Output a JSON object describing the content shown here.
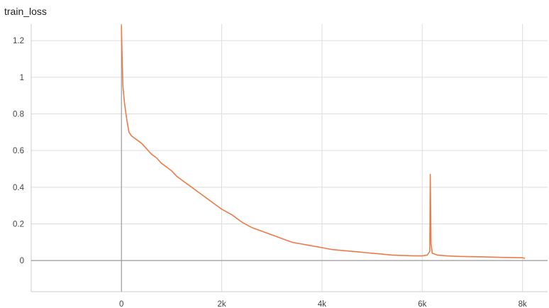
{
  "chart_data": {
    "type": "line",
    "title": "train_loss",
    "xlabel": "",
    "ylabel": "",
    "xlim": [
      -1800,
      8500
    ],
    "ylim": [
      -0.17,
      1.29
    ],
    "x_ticks": [
      0,
      2000,
      4000,
      6000,
      8000
    ],
    "x_tick_labels": [
      "0",
      "2k",
      "4k",
      "6k",
      "8k"
    ],
    "y_ticks": [
      0,
      0.2,
      0.4,
      0.6,
      0.8,
      1,
      1.2
    ],
    "y_tick_labels": [
      "0",
      "0.2",
      "0.4",
      "0.6",
      "0.8",
      "1",
      "1.2"
    ],
    "grid": true,
    "legend": "none",
    "series": [
      {
        "color": "#ed7b4a",
        "x": [
          0,
          10,
          30,
          60,
          100,
          150,
          200,
          300,
          400,
          500,
          600,
          700,
          800,
          900,
          1000,
          1100,
          1200,
          1300,
          1400,
          1500,
          1600,
          1700,
          1800,
          1900,
          2000,
          2100,
          2200,
          2300,
          2400,
          2500,
          2600,
          2700,
          2800,
          2900,
          3000,
          3100,
          3200,
          3300,
          3400,
          3500,
          3600,
          3700,
          3800,
          3900,
          4000,
          4200,
          4400,
          4600,
          4800,
          5000,
          5200,
          5400,
          5600,
          5800,
          6000,
          6100,
          6150,
          6160,
          6175,
          6200,
          6300,
          6500,
          6800,
          7200,
          7600,
          8000,
          8050
        ],
        "y": [
          1.28,
          1.15,
          0.95,
          0.86,
          0.78,
          0.7,
          0.68,
          0.66,
          0.64,
          0.61,
          0.58,
          0.56,
          0.53,
          0.51,
          0.49,
          0.46,
          0.44,
          0.42,
          0.4,
          0.38,
          0.36,
          0.34,
          0.32,
          0.3,
          0.28,
          0.265,
          0.25,
          0.23,
          0.21,
          0.195,
          0.18,
          0.17,
          0.16,
          0.15,
          0.14,
          0.13,
          0.12,
          0.11,
          0.1,
          0.095,
          0.09,
          0.085,
          0.08,
          0.075,
          0.07,
          0.06,
          0.055,
          0.05,
          0.045,
          0.04,
          0.035,
          0.03,
          0.028,
          0.026,
          0.025,
          0.03,
          0.05,
          0.47,
          0.09,
          0.04,
          0.03,
          0.025,
          0.022,
          0.02,
          0.017,
          0.015,
          0.012
        ]
      }
    ]
  }
}
